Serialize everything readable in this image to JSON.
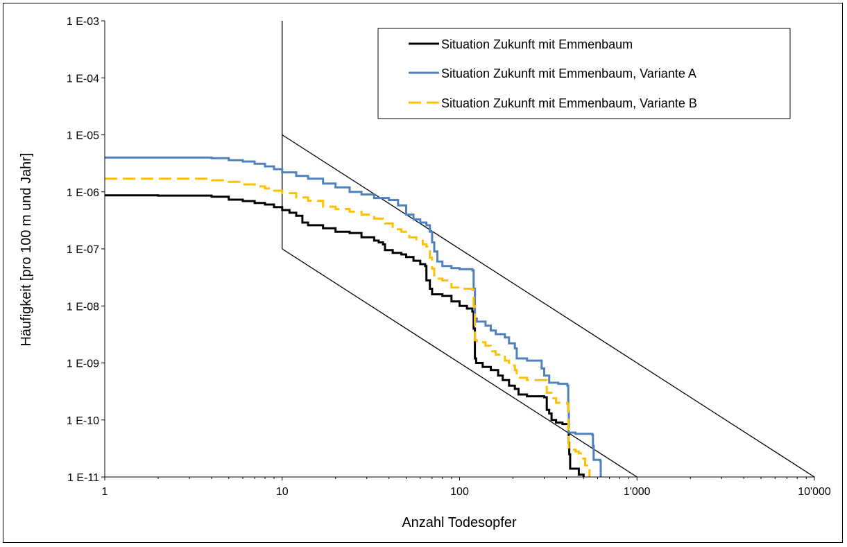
{
  "chart_data": {
    "type": "line",
    "xscale": "log",
    "yscale": "log",
    "xlim": [
      1,
      10000
    ],
    "ylim": [
      1e-11,
      0.001
    ],
    "xlabel": "Anzahl Todesopfer",
    "ylabel": "Häufigkeit [pro 100 m und Jahr]",
    "x_ticks": [
      {
        "value": 1,
        "label": "1"
      },
      {
        "value": 10,
        "label": "10"
      },
      {
        "value": 100,
        "label": "100"
      },
      {
        "value": 1000,
        "label": "1'000"
      },
      {
        "value": 10000,
        "label": "10'000"
      }
    ],
    "y_ticks": [
      {
        "value": 0.001,
        "label": "1 E-03"
      },
      {
        "value": 0.0001,
        "label": "1 E-04"
      },
      {
        "value": 1e-05,
        "label": "1 E-05"
      },
      {
        "value": 1e-06,
        "label": "1 E-06"
      },
      {
        "value": 1e-07,
        "label": "1 E-07"
      },
      {
        "value": 1e-08,
        "label": "1 E-08"
      },
      {
        "value": 1e-09,
        "label": "1 E-09"
      },
      {
        "value": 1e-10,
        "label": "1 E-10"
      },
      {
        "value": 1e-11,
        "label": "1 E-11"
      }
    ],
    "grid": false,
    "legend_position": "top-right",
    "reference_lines": [
      {
        "x": [
          10,
          10
        ],
        "y": [
          0.001,
          1e-07
        ]
      },
      {
        "x": [
          10,
          10000
        ],
        "y": [
          1e-05,
          1e-11
        ]
      },
      {
        "x": [
          10,
          1000
        ],
        "y": [
          1e-07,
          1e-11
        ]
      }
    ],
    "series": [
      {
        "name": "Situation Zukunft mit Emmenbaum",
        "color": "#000000",
        "dash": "solid",
        "points": [
          [
            1,
            8.7e-07
          ],
          [
            2,
            8.6e-07
          ],
          [
            4,
            8.2e-07
          ],
          [
            5,
            7.3e-07
          ],
          [
            6,
            6.9e-07
          ],
          [
            7,
            6.4e-07
          ],
          [
            8,
            6e-07
          ],
          [
            9,
            5.4e-07
          ],
          [
            10,
            4.8e-07
          ],
          [
            11,
            4.3e-07
          ],
          [
            12,
            3.8e-07
          ],
          [
            13,
            2.9e-07
          ],
          [
            14,
            2.6e-07
          ],
          [
            17,
            2.3e-07
          ],
          [
            20,
            2e-07
          ],
          [
            24,
            1.9e-07
          ],
          [
            28,
            1.6e-07
          ],
          [
            33,
            1.4e-07
          ],
          [
            35,
            1.3e-07
          ],
          [
            37,
            1.2e-07
          ],
          [
            38,
            9.5e-08
          ],
          [
            42,
            8.5e-08
          ],
          [
            47,
            8e-08
          ],
          [
            50,
            7.2e-08
          ],
          [
            55,
            6.2e-08
          ],
          [
            60,
            5.4e-08
          ],
          [
            64,
            5e-08
          ],
          [
            65,
            2.8e-08
          ],
          [
            68,
            2e-08
          ],
          [
            70,
            1.6e-08
          ],
          [
            80,
            1.5e-08
          ],
          [
            90,
            1.2e-08
          ],
          [
            100,
            1e-08
          ],
          [
            110,
            9e-09
          ],
          [
            118,
            8e-09
          ],
          [
            120,
            4e-09
          ],
          [
            122,
            1.2e-09
          ],
          [
            124,
            1e-09
          ],
          [
            135,
            8.5e-10
          ],
          [
            150,
            7.5e-10
          ],
          [
            165,
            6e-10
          ],
          [
            175,
            5e-10
          ],
          [
            190,
            4e-10
          ],
          [
            205,
            3.5e-10
          ],
          [
            215,
            2.8e-10
          ],
          [
            240,
            2.6e-10
          ],
          [
            300,
            2.5e-10
          ],
          [
            310,
            1.5e-10
          ],
          [
            320,
            1.3e-10
          ],
          [
            330,
            1e-10
          ],
          [
            350,
            9e-11
          ],
          [
            380,
            8.5e-11
          ],
          [
            410,
            8e-11
          ],
          [
            412,
            4e-11
          ],
          [
            415,
            2.5e-11
          ],
          [
            420,
            1.4e-11
          ],
          [
            470,
            1.1e-11
          ],
          [
            500,
            1e-11
          ]
        ]
      },
      {
        "name": "Situation Zukunft mit Emmenbaum, Variante A",
        "color": "#4F81BD",
        "dash": "solid",
        "points": [
          [
            1,
            4e-06
          ],
          [
            2,
            4e-06
          ],
          [
            4,
            3.9e-06
          ],
          [
            5,
            3.6e-06
          ],
          [
            6,
            3.4e-06
          ],
          [
            7,
            3.1e-06
          ],
          [
            8,
            2.8e-06
          ],
          [
            9,
            2.5e-06
          ],
          [
            10,
            2.2e-06
          ],
          [
            12,
            1.9e-06
          ],
          [
            14,
            1.7e-06
          ],
          [
            17,
            1.4e-06
          ],
          [
            20,
            1.2e-06
          ],
          [
            24,
            1e-06
          ],
          [
            28,
            9e-07
          ],
          [
            33,
            7.8e-07
          ],
          [
            40,
            7.2e-07
          ],
          [
            45,
            5.8e-07
          ],
          [
            50,
            4e-07
          ],
          [
            55,
            3.3e-07
          ],
          [
            60,
            2.9e-07
          ],
          [
            65,
            2.6e-07
          ],
          [
            68,
            2e-07
          ],
          [
            70,
            1.3e-07
          ],
          [
            72,
            9e-08
          ],
          [
            75,
            6e-08
          ],
          [
            80,
            5e-08
          ],
          [
            90,
            4.6e-08
          ],
          [
            100,
            4.4e-08
          ],
          [
            118,
            4.2e-08
          ],
          [
            120,
            2e-08
          ],
          [
            122,
            6e-09
          ],
          [
            125,
            5.3e-09
          ],
          [
            140,
            4.5e-09
          ],
          [
            150,
            3.7e-09
          ],
          [
            160,
            3.2e-09
          ],
          [
            180,
            2.8e-09
          ],
          [
            190,
            2.2e-09
          ],
          [
            205,
            1.8e-09
          ],
          [
            210,
            1.2e-09
          ],
          [
            240,
            1.1e-09
          ],
          [
            280,
            1.1e-09
          ],
          [
            290,
            8e-10
          ],
          [
            300,
            6e-10
          ],
          [
            320,
            4.5e-10
          ],
          [
            360,
            4.3e-10
          ],
          [
            405,
            4e-10
          ],
          [
            410,
            1.4e-10
          ],
          [
            413,
            6e-11
          ],
          [
            450,
            5.7e-11
          ],
          [
            560,
            5.5e-11
          ],
          [
            565,
            3.5e-11
          ],
          [
            570,
            2e-11
          ],
          [
            620,
            1.9e-11
          ],
          [
            625,
            1e-11
          ]
        ]
      },
      {
        "name": "Situation Zukunft mit Emmenbaum, Variante B",
        "color": "#FFC000",
        "dash": "dashed",
        "points": [
          [
            1,
            1.7e-06
          ],
          [
            2,
            1.7e-06
          ],
          [
            4,
            1.6e-06
          ],
          [
            5,
            1.5e-06
          ],
          [
            6,
            1.35e-06
          ],
          [
            7,
            1.25e-06
          ],
          [
            8,
            1.15e-06
          ],
          [
            9,
            1.05e-06
          ],
          [
            10,
            9.5e-07
          ],
          [
            12,
            8e-07
          ],
          [
            14,
            7e-07
          ],
          [
            17,
            5.5e-07
          ],
          [
            20,
            5e-07
          ],
          [
            24,
            4.5e-07
          ],
          [
            28,
            4e-07
          ],
          [
            33,
            3.4e-07
          ],
          [
            38,
            2.8e-07
          ],
          [
            42,
            2.2e-07
          ],
          [
            47,
            2e-07
          ],
          [
            52,
            1.6e-07
          ],
          [
            57,
            1.4e-07
          ],
          [
            62,
            1.2e-07
          ],
          [
            65,
            1.1e-07
          ],
          [
            68,
            7e-08
          ],
          [
            70,
            4.5e-08
          ],
          [
            72,
            3e-08
          ],
          [
            80,
            2.8e-08
          ],
          [
            90,
            2.1e-08
          ],
          [
            100,
            2e-08
          ],
          [
            118,
            1.9e-08
          ],
          [
            120,
            1e-08
          ],
          [
            122,
            2.5e-09
          ],
          [
            125,
            2.3e-09
          ],
          [
            140,
            2e-09
          ],
          [
            150,
            1.6e-09
          ],
          [
            160,
            1.4e-09
          ],
          [
            180,
            1.1e-09
          ],
          [
            190,
            9e-10
          ],
          [
            205,
            7.5e-10
          ],
          [
            210,
            5.5e-10
          ],
          [
            240,
            5e-10
          ],
          [
            300,
            5e-10
          ],
          [
            310,
            3e-10
          ],
          [
            330,
            2.4e-10
          ],
          [
            350,
            2e-10
          ],
          [
            405,
            1.9e-10
          ],
          [
            410,
            7e-11
          ],
          [
            413,
            3e-11
          ],
          [
            450,
            2.8e-11
          ],
          [
            470,
            2.6e-11
          ],
          [
            490,
            2.1e-11
          ],
          [
            510,
            1.6e-11
          ],
          [
            530,
            1.5e-11
          ],
          [
            540,
            1e-11
          ]
        ]
      }
    ]
  }
}
